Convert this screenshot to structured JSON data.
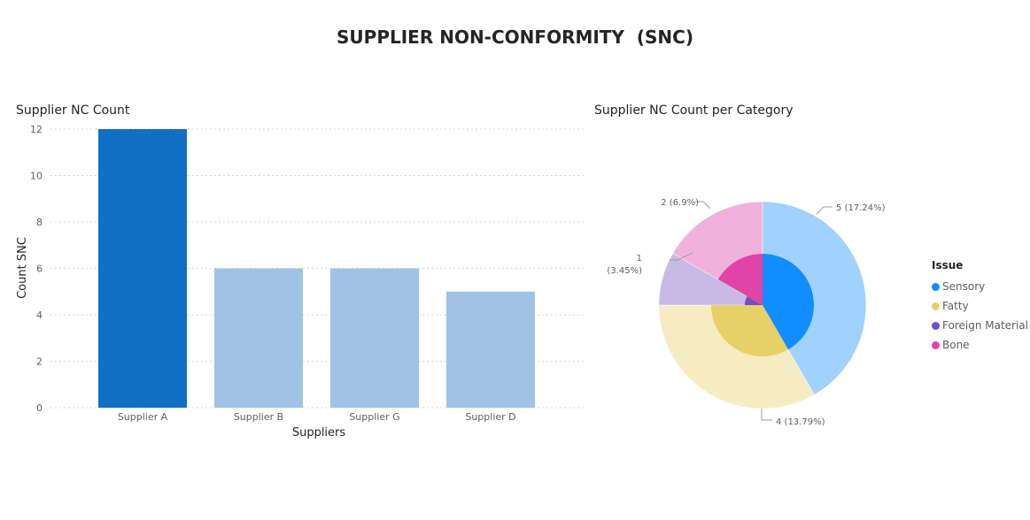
{
  "page": {
    "title": "SUPPLIER NON-CONFORMITY  (SNC)"
  },
  "bar_title": "Supplier NC Count",
  "pie_title": "Supplier NC Count per Category",
  "chart_data": [
    {
      "type": "bar",
      "title": "Supplier NC Count",
      "xlabel": "Suppliers",
      "ylabel": "Count SNC",
      "ylim": [
        0,
        12
      ],
      "yticks": [
        "0",
        "2",
        "4",
        "6",
        "8",
        "10",
        "12"
      ],
      "categories": [
        "Supplier A",
        "Supplier B",
        "Supplier G",
        "Supplier D"
      ],
      "values": [
        12,
        6,
        6,
        5
      ],
      "highlighted_index": 0,
      "colors": {
        "highlight": "#1170c4",
        "dimmed": "#a0c3e5"
      },
      "grid": true
    },
    {
      "type": "pie",
      "title": "Supplier NC Count per Category",
      "legend_title": "Issue",
      "legend_position": "right",
      "inner": [
        {
          "name": "Sensory",
          "value": 5,
          "color": "#118dff"
        },
        {
          "name": "Fatty",
          "value": 4,
          "color": "#e7d067"
        },
        {
          "name": "Foreign Material",
          "value": 1,
          "color": "#744ec2"
        },
        {
          "name": "Bone",
          "value": 2,
          "color": "#e044a7"
        }
      ],
      "outer": [
        {
          "name": "Sensory",
          "value": 5,
          "color": "#a0d1ff"
        },
        {
          "name": "Fatty",
          "value": 4,
          "color": "#f5ecc3"
        },
        {
          "name": "Foreign Material",
          "value": 1,
          "color": "#c9b9e6"
        },
        {
          "name": "Bone",
          "value": 2,
          "color": "#f0b2da"
        }
      ],
      "labels": [
        {
          "text": "5 (17.24%)"
        },
        {
          "text": "4 (13.79%)"
        },
        {
          "text": "1"
        },
        {
          "text": "(3.45%)"
        },
        {
          "text": "2 (6.9%)"
        }
      ]
    }
  ]
}
